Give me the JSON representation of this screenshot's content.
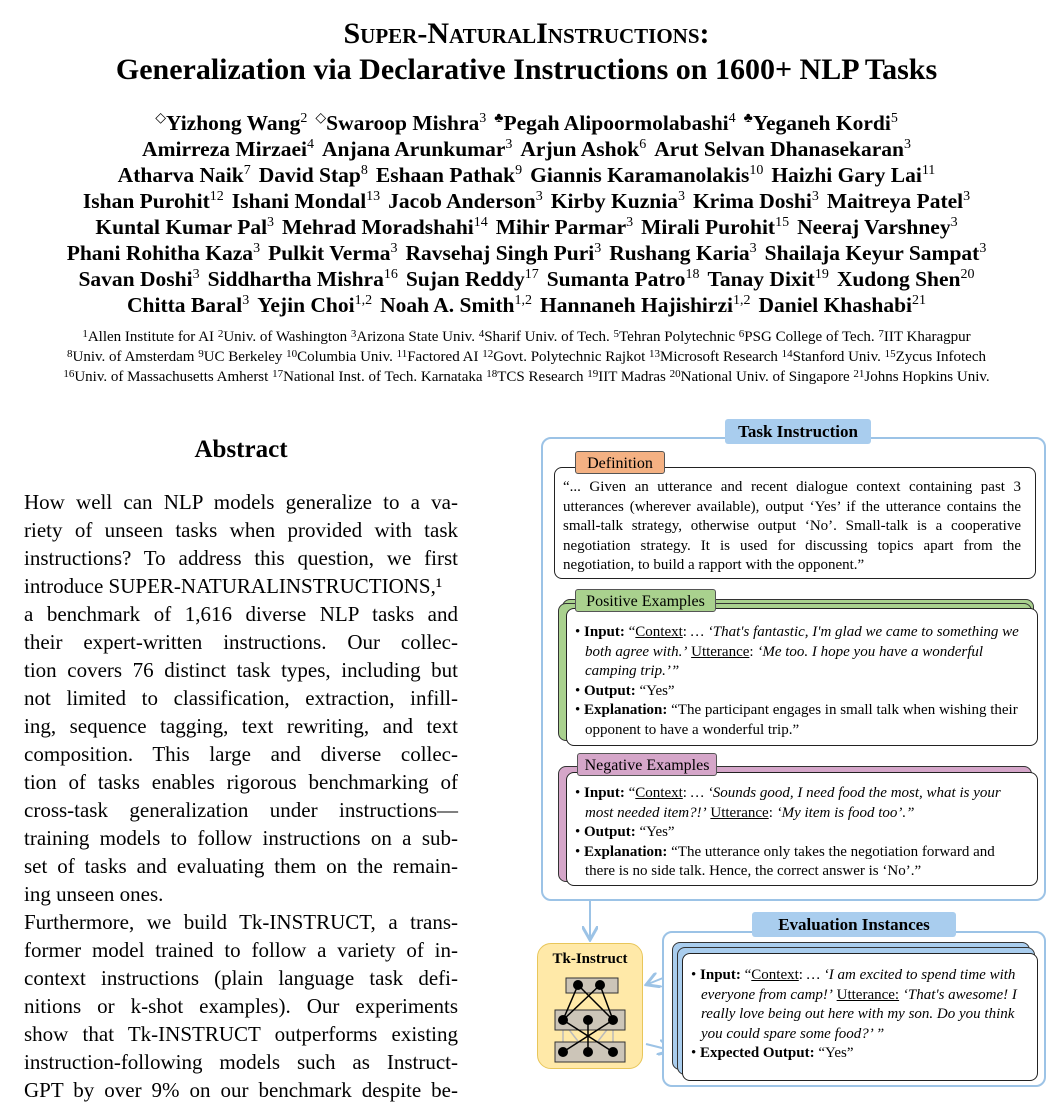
{
  "title": {
    "line1": "Super-NaturalInstructions:",
    "line2": "Generalization via Declarative Instructions on 1600+ NLP Tasks"
  },
  "authors": [
    [
      {
        "m": "◇",
        "n": "Yizhong Wang",
        "s": "2"
      },
      {
        "m": "◇",
        "n": "Swaroop Mishra",
        "s": "3"
      },
      {
        "m": "♣",
        "n": "Pegah Alipoormolabashi",
        "s": "4"
      },
      {
        "m": "♣",
        "n": "Yeganeh Kordi",
        "s": "5"
      }
    ],
    [
      {
        "n": "Amirreza Mirzaei",
        "s": "4"
      },
      {
        "n": "Anjana Arunkumar",
        "s": "3"
      },
      {
        "n": "Arjun Ashok",
        "s": "6"
      },
      {
        "n": "Arut Selvan Dhanasekaran",
        "s": "3"
      }
    ],
    [
      {
        "n": "Atharva Naik",
        "s": "7"
      },
      {
        "n": "David Stap",
        "s": "8"
      },
      {
        "n": "Eshaan Pathak",
        "s": "9"
      },
      {
        "n": "Giannis Karamanolakis",
        "s": "10"
      },
      {
        "n": "Haizhi Gary Lai",
        "s": "11"
      }
    ],
    [
      {
        "n": "Ishan Purohit",
        "s": "12"
      },
      {
        "n": "Ishani Mondal",
        "s": "13"
      },
      {
        "n": "Jacob Anderson",
        "s": "3"
      },
      {
        "n": "Kirby Kuznia",
        "s": "3"
      },
      {
        "n": "Krima Doshi",
        "s": "3"
      },
      {
        "n": "Maitreya Patel",
        "s": "3"
      }
    ],
    [
      {
        "n": "Kuntal Kumar Pal",
        "s": "3"
      },
      {
        "n": "Mehrad Moradshahi",
        "s": "14"
      },
      {
        "n": "Mihir Parmar",
        "s": "3"
      },
      {
        "n": "Mirali Purohit",
        "s": "15"
      },
      {
        "n": "Neeraj Varshney",
        "s": "3"
      }
    ],
    [
      {
        "n": "Phani Rohitha Kaza",
        "s": "3"
      },
      {
        "n": "Pulkit Verma",
        "s": "3"
      },
      {
        "n": "Ravsehaj Singh Puri",
        "s": "3"
      },
      {
        "n": "Rushang Karia",
        "s": "3"
      },
      {
        "n": "Shailaja Keyur Sampat",
        "s": "3"
      }
    ],
    [
      {
        "n": "Savan Doshi",
        "s": "3"
      },
      {
        "n": "Siddhartha Mishra",
        "s": "16"
      },
      {
        "n": "Sujan Reddy",
        "s": "17"
      },
      {
        "n": "Sumanta Patro",
        "s": "18"
      },
      {
        "n": "Tanay Dixit",
        "s": "19"
      },
      {
        "n": "Xudong Shen",
        "s": "20"
      }
    ],
    [
      {
        "n": "Chitta Baral",
        "s": "3"
      },
      {
        "n": "Yejin Choi",
        "s": "1,2"
      },
      {
        "n": "Noah A. Smith",
        "s": "1,2"
      },
      {
        "n": "Hannaneh Hajishirzi",
        "s": "1,2"
      },
      {
        "n": "Daniel Khashabi",
        "s": "21"
      }
    ]
  ],
  "affiliations": [
    [
      [
        "1",
        "Allen Institute for AI"
      ],
      [
        "2",
        "Univ. of Washington"
      ],
      [
        "3",
        "Arizona State Univ."
      ],
      [
        "4",
        "Sharif Univ. of Tech."
      ],
      [
        "5",
        "Tehran Polytechnic"
      ],
      [
        "6",
        "PSG College of Tech."
      ],
      [
        "7",
        "IIT Kharagpur"
      ]
    ],
    [
      [
        "8",
        "Univ. of Amsterdam"
      ],
      [
        "9",
        "UC Berkeley"
      ],
      [
        "10",
        "Columbia Univ."
      ],
      [
        "11",
        "Factored AI"
      ],
      [
        "12",
        "Govt. Polytechnic Rajkot"
      ],
      [
        "13",
        "Microsoft Research"
      ],
      [
        "14",
        "Stanford Univ."
      ],
      [
        "15",
        "Zycus Infotech"
      ]
    ],
    [
      [
        "16",
        "Univ. of Massachusetts Amherst"
      ],
      [
        "17",
        "National Inst. of Tech. Karnataka"
      ],
      [
        "18",
        "TCS Research"
      ],
      [
        "19",
        "IIT Madras"
      ],
      [
        "20",
        "National Univ. of Singapore"
      ],
      [
        "21",
        "Johns Hopkins Univ."
      ]
    ]
  ],
  "abstract": {
    "heading": "Abstract",
    "lines": [
      "How well can NLP models generalize to a va-",
      "riety of unseen tasks when provided with task",
      "instructions? To address this question, we first",
      "introduce SUPER-NATURALINSTRUCTIONS,¹",
      "a benchmark of 1,616 diverse NLP tasks and",
      "their expert-written instructions. Our collec-",
      "tion covers 76 distinct task types, including but",
      "not limited to classification, extraction, infill-",
      "ing, sequence tagging, text rewriting, and text",
      "composition. This large and diverse collec-",
      "tion of tasks enables rigorous benchmarking of",
      "cross-task generalization under instructions—",
      "training models to follow instructions on a sub-",
      "set of tasks and evaluating them on the remain-",
      "ing unseen ones.",
      "Furthermore, we build Tk-INSTRUCT, a trans-",
      "former model trained to follow a variety of in-",
      "context instructions (plain language task defi-",
      "nitions or k-shot examples). Our experiments",
      "show that Tk-INSTRUCT outperforms existing",
      "instruction-following models such as Instruct-",
      "GPT by over 9% on our benchmark despite be-"
    ],
    "last_lines": [
      14
    ]
  },
  "figure": {
    "task_instruction": "Task Instruction",
    "definition_label": "Definition",
    "definition": "“... Given an utterance and recent dialogue context containing past 3 utterances (wherever available), output ‘Yes’ if the utterance contains the small-talk strategy, otherwise output ‘No’. Small-talk is a cooperative negotiation strategy. It is used for discussing topics apart from the negotiation, to build a rapport with the opponent.”",
    "positive_label": "Positive Examples",
    "positive": {
      "input_k": "Input:",
      "ctx": "Context",
      "input": "… ‘That's fantastic, I'm glad we came to something we both agree with.’",
      "utt": "Utterance",
      "input2": "‘Me too. I hope you have a wonderful camping trip.’”",
      "output_k": "Output:",
      "output": "“Yes”",
      "expl_k": "Explanation:",
      "expl": "“The participant engages in small talk when wishing their opponent to have a wonderful trip.”"
    },
    "negative_label": "Negative Examples",
    "negative": {
      "input_k": "Input:",
      "ctx": "Context",
      "input": "… ‘Sounds good, I need food the most, what is your most needed item?!’",
      "utt": "Utterance",
      "input2": "‘My item is food too’.”",
      "output_k": "Output:",
      "output": "“Yes”",
      "expl_k": "Explanation:",
      "expl": "“The utterance only takes the negotiation forward and there is no side talk. Hence, the correct answer is ‘No’.”"
    },
    "model_label": "Tk-Instruct",
    "eval_label": "Evaluation Instances",
    "eval": {
      "input_k": "Input:",
      "ctx": "Context",
      "input": "… ‘I am excited to spend time with everyone from camp!’",
      "utt": "Utterance:",
      "input2": "‘That's awesome! I really love being out here with my son. Do you think you could spare some food?’ ”",
      "output_k": "Expected Output:",
      "output": "“Yes”"
    },
    "colors": {
      "blue_label": "#a9cdee",
      "frame": "#9cc3e6",
      "definition": "#f4b183",
      "positive": "#a9d18e",
      "negative": "#d5a6c9",
      "model": "#ffe9a8"
    }
  }
}
